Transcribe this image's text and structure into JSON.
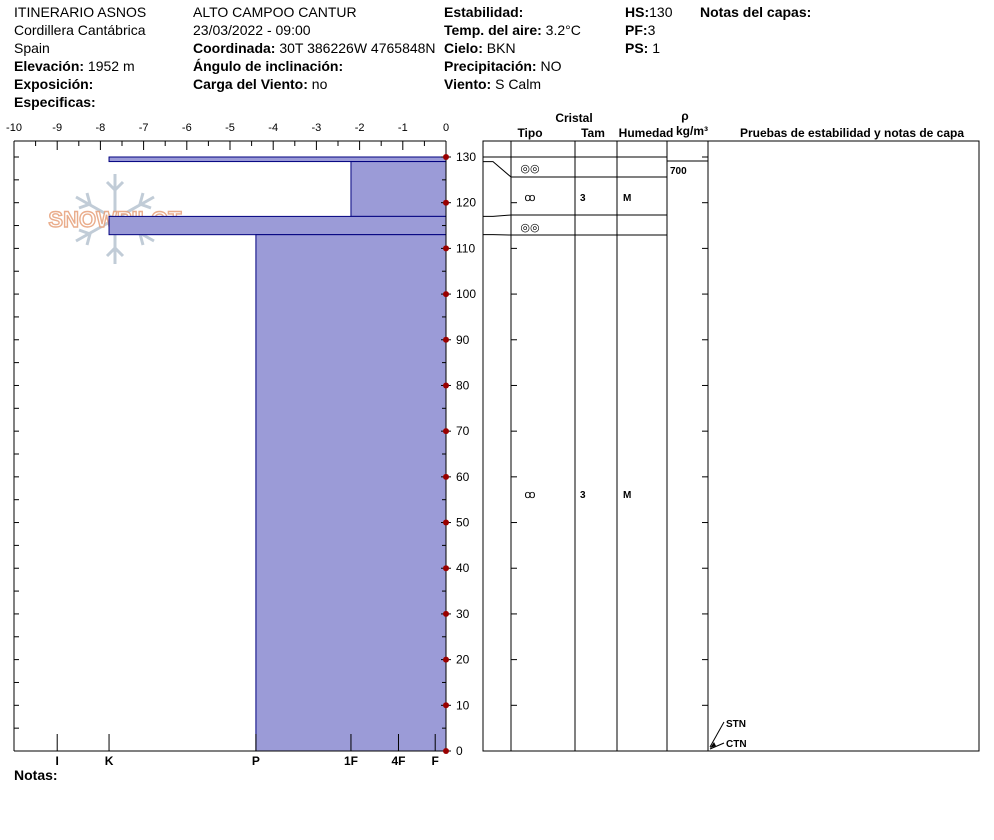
{
  "header": {
    "col1": [
      {
        "label": "",
        "value": "ITINERARIO ASNOS"
      },
      {
        "label": "",
        "value": "Cordillera Cantábrica"
      },
      {
        "label": "",
        "value": "Spain"
      },
      {
        "label": "Elevación:",
        "value": "1952 m"
      },
      {
        "label": "Exposición:",
        "value": ""
      },
      {
        "label": "Especificas:",
        "value": ""
      }
    ],
    "col2": [
      {
        "label": "",
        "value": "ALTO CAMPOO CANTUR"
      },
      {
        "label": "",
        "value": "23/03/2022 - 09:00"
      },
      {
        "label": "Coordinada:",
        "value": "30T 386226W 4765848N"
      },
      {
        "label": "Ángulo de inclinación:",
        "value": ""
      },
      {
        "label": "Carga del Viento:",
        "value": "no"
      }
    ],
    "col3": [
      {
        "label": "Estabilidad:",
        "value": ""
      },
      {
        "label": "Temp. del aire:",
        "value": "3.2°C"
      },
      {
        "label": "Cielo:",
        "value": "BKN"
      },
      {
        "label": "Precipitación:",
        "value": "NO"
      },
      {
        "label": "Viento:",
        "value": " S Calm"
      }
    ],
    "col4": [
      {
        "label": "HS:",
        "value": "130"
      },
      {
        "label": "PF:",
        "value": "3"
      },
      {
        "label": "PS:",
        "value": "1"
      }
    ],
    "col5": [
      {
        "label": "Notas del capas:",
        "value": ""
      }
    ]
  },
  "notes_label": "Notas:",
  "watermark_text": "SNOWPILOT",
  "colors": {
    "fill": "#9b9bd7",
    "stroke": "#00007f",
    "marker": "#990000",
    "grid": "#000000"
  },
  "chart_data": {
    "type": "bar",
    "orientation": "horizontal-step-profile",
    "top_axis_ticks": [
      "-10",
      "-9",
      "-8",
      "-7",
      "-6",
      "-5",
      "-4",
      "-3",
      "-2",
      "-1",
      "0"
    ],
    "temperature_range": [
      -10,
      0
    ],
    "height_ticks": [
      "130",
      "120",
      "110",
      "100",
      "90",
      "80",
      "70",
      "60",
      "50",
      "40",
      "30",
      "20",
      "10",
      "0"
    ],
    "height_range": [
      0,
      130
    ],
    "hardness_ticks": [
      {
        "label": "I",
        "pos": -9.0
      },
      {
        "label": "K",
        "pos": -7.8
      },
      {
        "label": "P",
        "pos": -4.4
      },
      {
        "label": "1F",
        "pos": -2.2
      },
      {
        "label": "4F",
        "pos": -1.1
      },
      {
        "label": "F",
        "pos": -0.25
      }
    ],
    "layers": [
      {
        "top": 130,
        "bottom": 129,
        "hardness_pos": -7.8
      },
      {
        "top": 129,
        "bottom": 117,
        "hardness_pos": -2.2
      },
      {
        "top": 117,
        "bottom": 113,
        "hardness_pos": -7.8
      },
      {
        "top": 113,
        "bottom": 0,
        "hardness_pos": -4.4
      }
    ]
  },
  "table": {
    "header_cristal": "Cristal",
    "header_rho": "ρ",
    "header_tipo": "Tipo",
    "header_tam": "Tam",
    "header_humedad": "Humedad",
    "header_density_unit": "kg/m³",
    "header_pruebas": "Pruebas de estabilidad y notas de capa",
    "rows": [
      {
        "tipo": "◎◎",
        "tam": "",
        "humedad": ""
      },
      {
        "tipo": "ꝏ",
        "tam": "3",
        "humedad": "M"
      },
      {
        "tipo": "◎◎",
        "tam": "",
        "humedad": ""
      },
      {
        "tipo": "ꝏ",
        "tam": "3",
        "humedad": "M"
      }
    ],
    "density_value": "700",
    "tests": [
      "STN",
      "CTN"
    ]
  }
}
